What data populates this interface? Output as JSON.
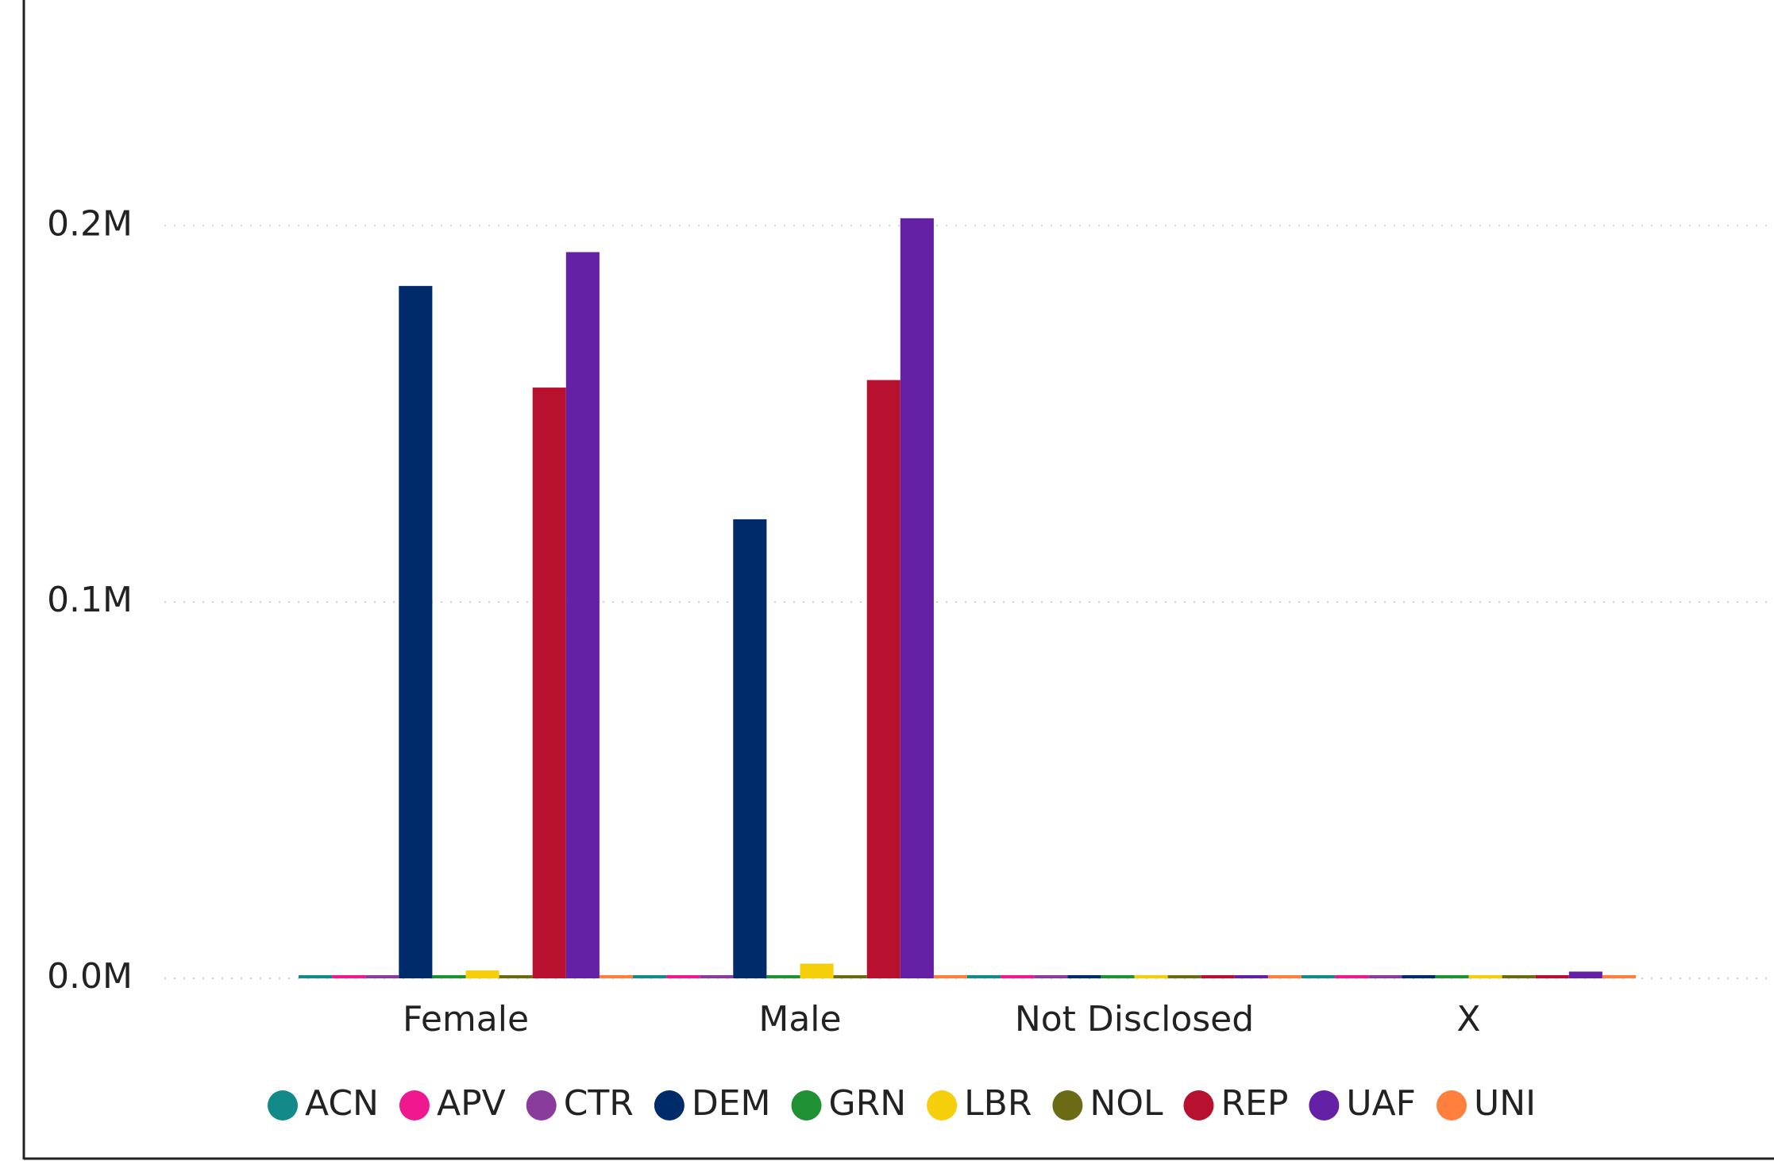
{
  "chart_data": {
    "type": "bar",
    "categories": [
      "Female",
      "Male",
      "Not Disclosed",
      "X"
    ],
    "series": [
      {
        "name": "ACN",
        "color": "#13898a",
        "values": [
          300,
          300,
          300,
          300
        ]
      },
      {
        "name": "APV",
        "color": "#f0188f",
        "values": [
          300,
          300,
          300,
          300
        ]
      },
      {
        "name": "CTR",
        "color": "#8a3c9c",
        "values": [
          300,
          300,
          300,
          300
        ]
      },
      {
        "name": "DEM",
        "color": "#002b6b",
        "values": [
          184000,
          122000,
          300,
          300
        ]
      },
      {
        "name": "GRN",
        "color": "#1f9132",
        "values": [
          300,
          300,
          300,
          300
        ]
      },
      {
        "name": "LBR",
        "color": "#f5cf0c",
        "values": [
          2100,
          3900,
          300,
          300
        ]
      },
      {
        "name": "NOL",
        "color": "#6b6b16",
        "values": [
          300,
          300,
          300,
          300
        ]
      },
      {
        "name": "REP",
        "color": "#b8102f",
        "values": [
          157000,
          159000,
          300,
          300
        ]
      },
      {
        "name": "UAF",
        "color": "#6421a6",
        "values": [
          193000,
          202000,
          300,
          1800
        ]
      },
      {
        "name": "UNI",
        "color": "#ff7f3f",
        "values": [
          300,
          300,
          300,
          300
        ]
      }
    ],
    "ylim": [
      0,
      260000
    ],
    "yticks": [
      {
        "value": 0,
        "label": "0.0M"
      },
      {
        "value": 100000,
        "label": "0.1M"
      },
      {
        "value": 200000,
        "label": "0.2M"
      }
    ],
    "grid": true
  }
}
